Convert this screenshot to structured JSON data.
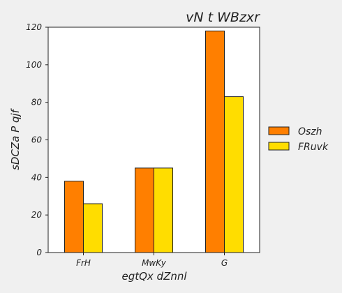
{
  "chart_data": {
    "type": "bar",
    "title": "vN  t WBzxr",
    "xlabel": "egtQx  dZnnl",
    "ylabel": "sDCZa P qjf",
    "categories": [
      "FrH",
      "MwKy",
      "G"
    ],
    "series": [
      {
        "name": "Oszh",
        "values": [
          38,
          45,
          118
        ],
        "color": "#ff7f00"
      },
      {
        "name": "FRuvk",
        "values": [
          26,
          45,
          83
        ],
        "color": "#ffdd00"
      }
    ],
    "ylim": [
      0,
      120
    ],
    "yticks": [
      0,
      20,
      40,
      60,
      80,
      100,
      120
    ],
    "grid": false,
    "legend_position": "right"
  }
}
